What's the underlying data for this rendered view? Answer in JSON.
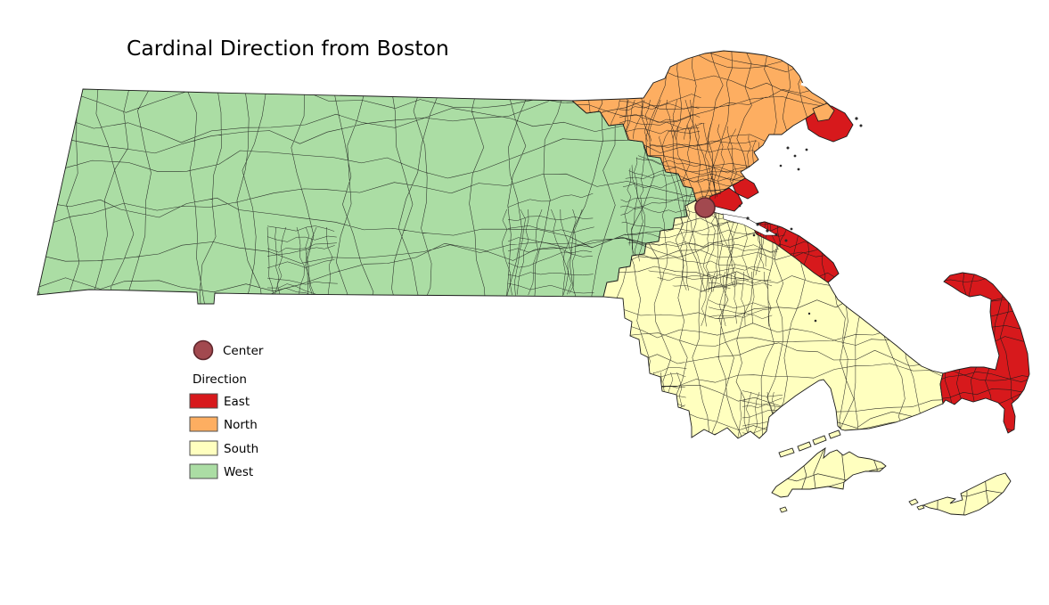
{
  "title": "Cardinal Direction from Boston",
  "legend": {
    "center_label": "Center",
    "group_title": "Direction",
    "items": [
      {
        "label": "East"
      },
      {
        "label": "North"
      },
      {
        "label": "South"
      },
      {
        "label": "West"
      }
    ]
  },
  "colors": {
    "east": "#D7191C",
    "north": "#FDAE61",
    "south": "#FFFFBF",
    "west": "#ABDDA4",
    "center_fill": "#A2494F",
    "center_stroke": "#5E262C",
    "boundary": "#1B1B1B",
    "swatch_border": "#4D4D4D"
  },
  "chart_data": {
    "type": "choropleth",
    "title": "Cardinal Direction from Boston",
    "region_shown": "Massachusetts town/tract polygons",
    "categories": [
      {
        "name": "East",
        "color": "#D7191C"
      },
      {
        "name": "North",
        "color": "#FDAE61"
      },
      {
        "name": "South",
        "color": "#FFFFBF"
      },
      {
        "name": "West",
        "color": "#ABDDA4"
      }
    ],
    "center_marker": {
      "label": "Center",
      "location": "Boston",
      "color": "#A2494F"
    },
    "legend_position": "middle-left",
    "grid": false
  }
}
